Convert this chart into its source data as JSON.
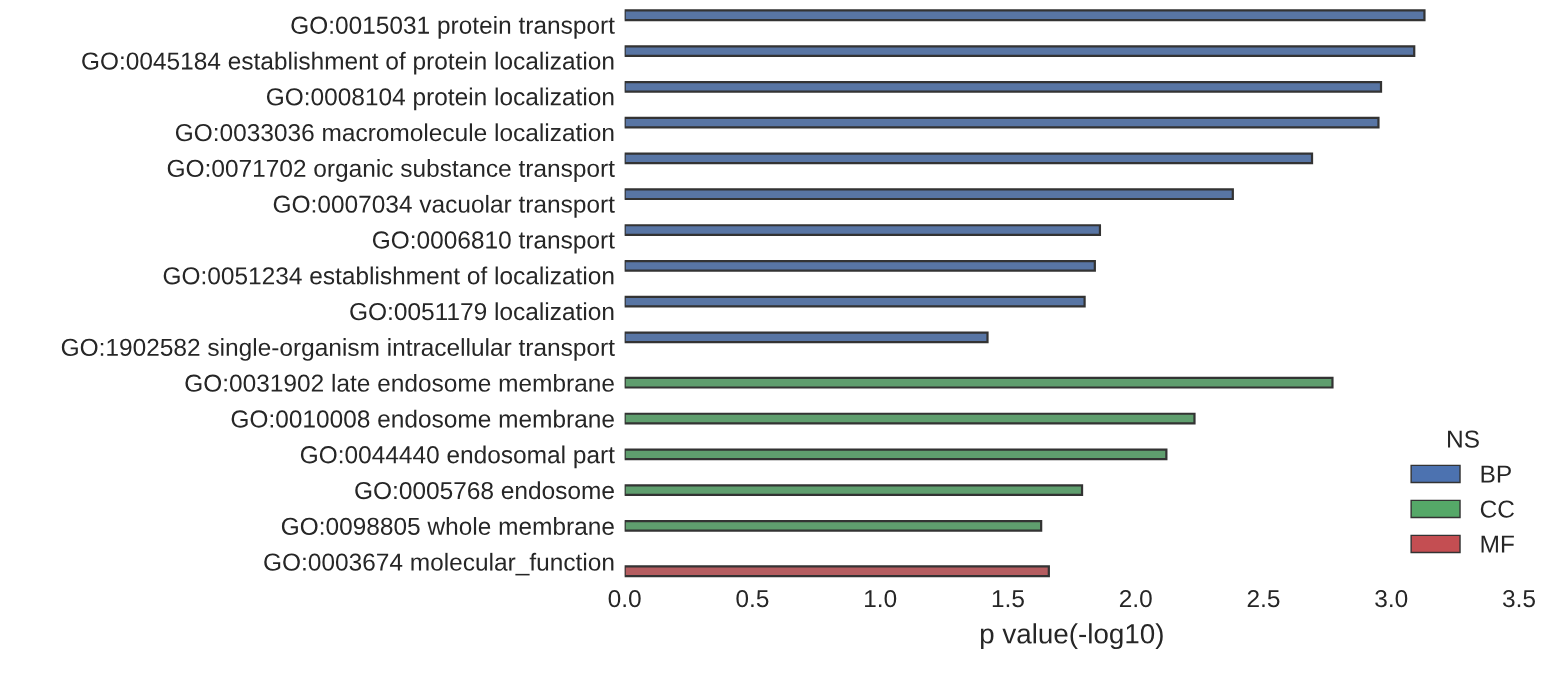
{
  "chart_data": {
    "type": "bar",
    "orientation": "horizontal",
    "xlabel": "p value(-log10)",
    "legend_title": "NS",
    "legend": "lower right",
    "grid": false,
    "categories": [
      "GO:0015031 protein transport",
      "GO:0045184 establishment of protein localization",
      "GO:0008104 protein localization",
      "GO:0033036 macromolecule localization",
      "GO:0071702 organic substance transport",
      "GO:0007034 vacuolar transport",
      "GO:0006810 transport",
      "GO:0051234 establishment of localization",
      "GO:0051179 localization",
      "GO:1902582 single-organism intracellular transport",
      "GO:0031902 late endosome membrane",
      "GO:0010008 endosome membrane",
      "GO:0044440 endosomal part",
      "GO:0005768 endosome",
      "GO:0098805 whole membrane",
      "GO:0003674 molecular_function"
    ],
    "series": [
      {
        "name": "BP",
        "color": "#4c72b0",
        "values": [
          3.13,
          3.09,
          2.96,
          2.95,
          2.69,
          2.38,
          1.86,
          1.84,
          1.8,
          1.42,
          null,
          null,
          null,
          null,
          null,
          null
        ]
      },
      {
        "name": "CC",
        "color": "#55a868",
        "values": [
          null,
          null,
          null,
          null,
          null,
          null,
          null,
          null,
          null,
          null,
          2.77,
          2.23,
          2.12,
          1.79,
          1.63,
          null
        ]
      },
      {
        "name": "MF",
        "color": "#c44e52",
        "values": [
          null,
          null,
          null,
          null,
          null,
          null,
          null,
          null,
          null,
          null,
          null,
          null,
          null,
          null,
          null,
          1.66
        ]
      }
    ],
    "xlim": [
      0,
      3.5
    ],
    "xticks": [
      {
        "value": 0,
        "label": "0.0"
      },
      0.5,
      {
        "value": 1,
        "label": "1.0"
      },
      1.5,
      {
        "value": 2,
        "label": "2.0"
      },
      2.5,
      {
        "value": 3,
        "label": "3.0"
      },
      3.5
    ]
  }
}
